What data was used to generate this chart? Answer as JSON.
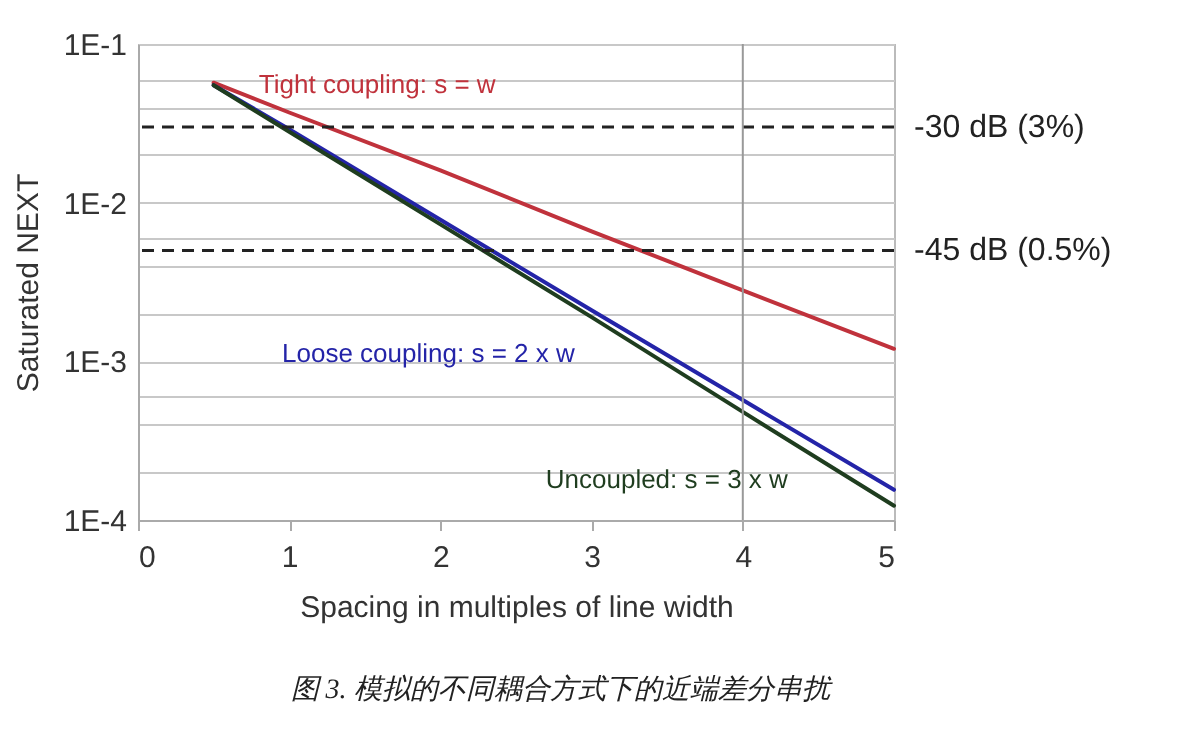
{
  "chart_data": {
    "type": "line",
    "xlabel": "Spacing in multiples of line width",
    "ylabel": "Saturated NEXT",
    "log": "y",
    "grid": "y",
    "legend": false,
    "marker": "none",
    "line_style": "solid",
    "xlim": [
      0,
      5
    ],
    "xticks": [
      0,
      1,
      2,
      3,
      4,
      5
    ],
    "ylim": [
      0.0001,
      0.1
    ],
    "yticks": [
      {
        "value": 0.0001,
        "label": "1E-4"
      },
      {
        "value": 0.0002,
        "label": null
      },
      {
        "value": 0.0004,
        "label": null
      },
      {
        "value": 0.0006,
        "label": null
      },
      {
        "value": 0.001,
        "label": "1E-3"
      },
      {
        "value": 0.002,
        "label": null
      },
      {
        "value": 0.004,
        "label": null
      },
      {
        "value": 0.006,
        "label": null
      },
      {
        "value": 0.01,
        "label": "1E-2"
      },
      {
        "value": 0.02,
        "label": null
      },
      {
        "value": 0.04,
        "label": null
      },
      {
        "value": 0.06,
        "label": null
      },
      {
        "value": 0.1,
        "label": "1E-1"
      }
    ],
    "x": [
      0.5,
      1,
      2,
      3,
      4,
      5
    ],
    "series": [
      {
        "name": "Tight coupling: s = w",
        "color": "#c0323c",
        "values": [
          0.057,
          0.037,
          0.016,
          0.0066,
          0.0028,
          0.0012
        ]
      },
      {
        "name": "Loose coupling: s = 2 x w",
        "color": "#2424a8",
        "values": [
          0.055,
          0.029,
          0.0078,
          0.0021,
          0.00057,
          0.000155
        ]
      },
      {
        "name": "Uncoupled: s = 3 x w",
        "color": "#1f3d1f",
        "values": [
          0.055,
          0.028,
          0.0073,
          0.0019,
          0.00048,
          0.000123
        ]
      }
    ],
    "ref_lines": [
      {
        "axis": "y",
        "value": 0.03,
        "label": "-30 dB (3%)",
        "color": "#222222",
        "line_style": "dashed"
      },
      {
        "axis": "y",
        "value": 0.005,
        "label": "-45 dB (0.5%)",
        "color": "#222222",
        "line_style": "dashed"
      },
      {
        "axis": "x",
        "value": 4,
        "color": "#999999",
        "line_style": "solid"
      }
    ],
    "annotations": [
      "图 3.  模拟的不同耦合方式下的近端差分串扰"
    ]
  }
}
